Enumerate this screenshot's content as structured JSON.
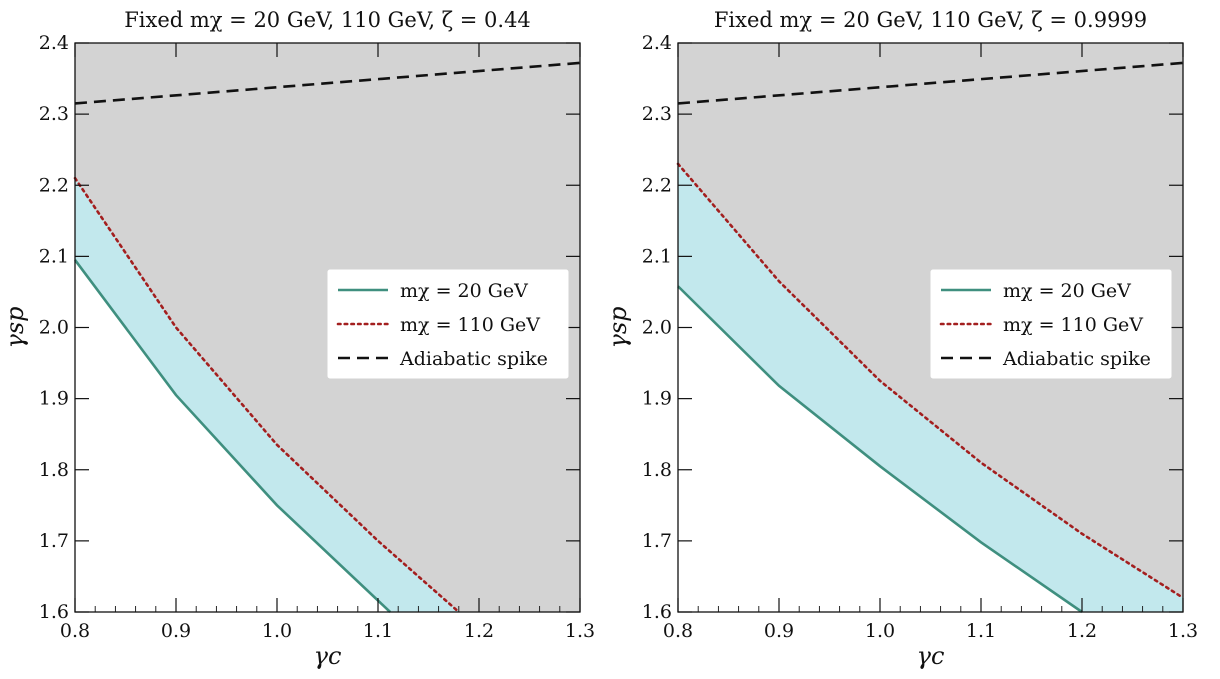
{
  "chart_data": [
    {
      "type": "line",
      "title": "Fixed mχ = 20 GeV, 110 GeV, ζ = 0.44",
      "xlabel": "γc",
      "ylabel": "γsp",
      "xlim": [
        0.8,
        1.3
      ],
      "ylim": [
        1.6,
        2.4
      ],
      "xticks": [
        "0.8",
        "0.9",
        "1.0",
        "1.1",
        "1.2",
        "1.3"
      ],
      "yticks": [
        "1.6",
        "1.7",
        "1.8",
        "1.9",
        "2.0",
        "2.1",
        "2.2",
        "2.3",
        "2.4"
      ],
      "grid": false,
      "legend_position": "right",
      "shaded_regions": [
        {
          "name": "excluded",
          "color": "#d3d3d3",
          "description_bound": "above mχ = 20 GeV curve"
        },
        {
          "name": "band",
          "color": "#c2e8ed",
          "description_bound": "between mχ = 20 GeV and mχ = 110 GeV curves"
        }
      ],
      "series": [
        {
          "name": "mχ = 20 GeV",
          "style": "solid",
          "color": "#3f8f7f",
          "x": [
            0.8,
            0.9,
            1.0,
            1.112
          ],
          "y": [
            2.095,
            1.905,
            1.75,
            1.6
          ]
        },
        {
          "name": "mχ = 110 GeV",
          "style": "dotted",
          "color": "#a31f1f",
          "x": [
            0.8,
            0.9,
            1.0,
            1.1,
            1.18
          ],
          "y": [
            2.21,
            2.0,
            1.835,
            1.7,
            1.6
          ]
        },
        {
          "name": "Adiabatic spike",
          "style": "dashed",
          "color": "#111111",
          "x": [
            0.8,
            1.3
          ],
          "y": [
            2.315,
            2.372
          ]
        }
      ]
    },
    {
      "type": "line",
      "title": "Fixed mχ = 20 GeV, 110 GeV, ζ = 0.9999",
      "xlabel": "γc",
      "ylabel": "γsp",
      "xlim": [
        0.8,
        1.3
      ],
      "ylim": [
        1.6,
        2.4
      ],
      "xticks": [
        "0.8",
        "0.9",
        "1.0",
        "1.1",
        "1.2",
        "1.3"
      ],
      "yticks": [
        "1.6",
        "1.7",
        "1.8",
        "1.9",
        "2.0",
        "2.1",
        "2.2",
        "2.3",
        "2.4"
      ],
      "grid": false,
      "legend_position": "right",
      "shaded_regions": [
        {
          "name": "excluded",
          "color": "#d3d3d3",
          "description_bound": "above mχ = 20 GeV curve"
        },
        {
          "name": "band",
          "color": "#c2e8ed",
          "description_bound": "between mχ = 20 GeV and mχ = 110 GeV curves"
        }
      ],
      "series": [
        {
          "name": "mχ = 20 GeV",
          "style": "solid",
          "color": "#3f8f7f",
          "x": [
            0.8,
            0.9,
            1.0,
            1.1,
            1.2
          ],
          "y": [
            2.058,
            1.918,
            1.805,
            1.698,
            1.6
          ]
        },
        {
          "name": "mχ = 110 GeV",
          "style": "dotted",
          "color": "#a31f1f",
          "x": [
            0.8,
            0.9,
            1.0,
            1.1,
            1.2,
            1.3
          ],
          "y": [
            2.23,
            2.065,
            1.925,
            1.81,
            1.71,
            1.62
          ]
        },
        {
          "name": "Adiabatic spike",
          "style": "dashed",
          "color": "#111111",
          "x": [
            0.8,
            1.3
          ],
          "y": [
            2.315,
            2.372
          ]
        }
      ]
    }
  ]
}
